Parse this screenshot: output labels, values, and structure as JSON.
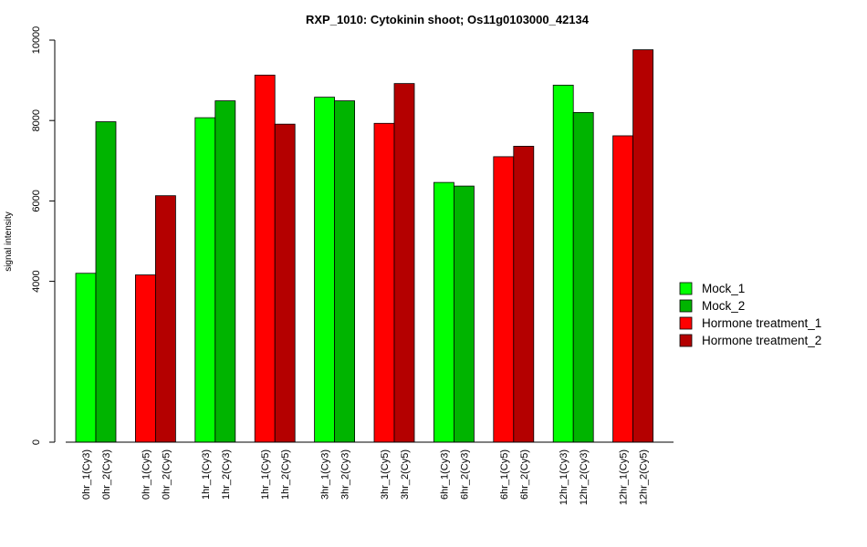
{
  "chart_data": {
    "type": "bar",
    "title": "RXP_1010: Cytokinin shoot; Os11g0103000_42134",
    "ylabel": "signal intensity",
    "xlabel": "",
    "ylim": [
      0,
      10000
    ],
    "yticks": [
      0,
      4000,
      6000,
      8000,
      10000
    ],
    "colors": {
      "Mock_1": "#00ff00",
      "Mock_2": "#00b400",
      "Hormone treatment_1": "#ff0000",
      "Hormone treatment_2": "#b40000"
    },
    "legend": {
      "position": "right",
      "entries": [
        {
          "label": "Mock_1",
          "color": "#00ff00"
        },
        {
          "label": "Mock_2",
          "color": "#00b400"
        },
        {
          "label": "Hormone treatment_1",
          "color": "#ff0000"
        },
        {
          "label": "Hormone treatment_2",
          "color": "#b40000"
        }
      ]
    },
    "groups": [
      {
        "bars": [
          {
            "label": "0hr_1(Cy3)",
            "value": 4200,
            "series": "Mock_1"
          },
          {
            "label": "0hr_2(Cy3)",
            "value": 7970,
            "series": "Mock_2"
          }
        ]
      },
      {
        "bars": [
          {
            "label": "0hr_1(Cy5)",
            "value": 4160,
            "series": "Hormone treatment_1"
          },
          {
            "label": "0hr_2(Cy5)",
            "value": 6130,
            "series": "Hormone treatment_2"
          }
        ]
      },
      {
        "bars": [
          {
            "label": "1hr_1(Cy3)",
            "value": 8070,
            "series": "Mock_1"
          },
          {
            "label": "1hr_2(Cy3)",
            "value": 8490,
            "series": "Mock_2"
          }
        ]
      },
      {
        "bars": [
          {
            "label": "1hr_1(Cy5)",
            "value": 9130,
            "series": "Hormone treatment_1"
          },
          {
            "label": "1hr_2(Cy5)",
            "value": 7910,
            "series": "Hormone treatment_2"
          }
        ]
      },
      {
        "bars": [
          {
            "label": "3hr_1(Cy3)",
            "value": 8580,
            "series": "Mock_1"
          },
          {
            "label": "3hr_2(Cy3)",
            "value": 8490,
            "series": "Mock_2"
          }
        ]
      },
      {
        "bars": [
          {
            "label": "3hr_1(Cy5)",
            "value": 7930,
            "series": "Hormone treatment_1"
          },
          {
            "label": "3hr_2(Cy5)",
            "value": 8920,
            "series": "Hormone treatment_2"
          }
        ]
      },
      {
        "bars": [
          {
            "label": "6hr_1(Cy3)",
            "value": 6460,
            "series": "Mock_1"
          },
          {
            "label": "6hr_2(Cy3)",
            "value": 6370,
            "series": "Mock_2"
          }
        ]
      },
      {
        "bars": [
          {
            "label": "6hr_1(Cy5)",
            "value": 7100,
            "series": "Hormone treatment_1"
          },
          {
            "label": "6hr_2(Cy5)",
            "value": 7360,
            "series": "Hormone treatment_2"
          }
        ]
      },
      {
        "bars": [
          {
            "label": "12hr_1(Cy3)",
            "value": 8880,
            "series": "Mock_1"
          },
          {
            "label": "12hr_2(Cy3)",
            "value": 8200,
            "series": "Mock_2"
          }
        ]
      },
      {
        "bars": [
          {
            "label": "12hr_1(Cy5)",
            "value": 7620,
            "series": "Hormone treatment_1"
          },
          {
            "label": "12hr_2(Cy5)",
            "value": 9760,
            "series": "Hormone treatment_2"
          }
        ]
      }
    ]
  }
}
